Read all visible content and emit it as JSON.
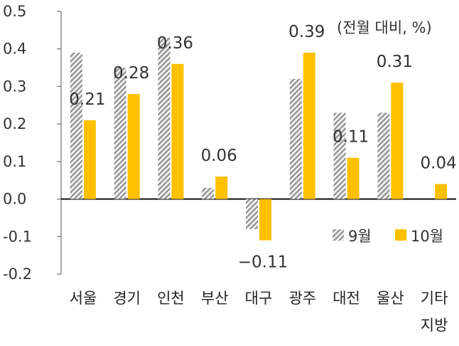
{
  "chart_data": {
    "type": "bar",
    "unit_note": "(전월 대비, %)",
    "categories": [
      [
        "서울"
      ],
      [
        "경기"
      ],
      [
        "인천"
      ],
      [
        "부산"
      ],
      [
        "대구"
      ],
      [
        "광주"
      ],
      [
        "대전"
      ],
      [
        "울산"
      ],
      [
        "기타",
        "지방"
      ]
    ],
    "series": [
      {
        "name": "9월",
        "pattern": "hatched-gray",
        "values": [
          0.39,
          0.35,
          0.43,
          0.03,
          -0.08,
          0.32,
          0.23,
          0.23,
          0.0
        ]
      },
      {
        "name": "10월",
        "color": "#FFC000",
        "values": [
          0.21,
          0.28,
          0.36,
          0.06,
          -0.11,
          0.39,
          0.11,
          0.31,
          0.04
        ]
      }
    ],
    "data_labels": [
      "0.21",
      "0.28",
      "0.36",
      "0.06",
      "−0.11",
      "0.39",
      "0.11",
      "0.31",
      "0.04"
    ],
    "ylim": [
      -0.2,
      0.5
    ],
    "yticks": [
      "0.5",
      "0.4",
      "0.3",
      "0.2",
      "0.1",
      "0.0",
      "-0.1",
      "-0.2"
    ],
    "grid": false,
    "legend_position": "lower-right"
  }
}
